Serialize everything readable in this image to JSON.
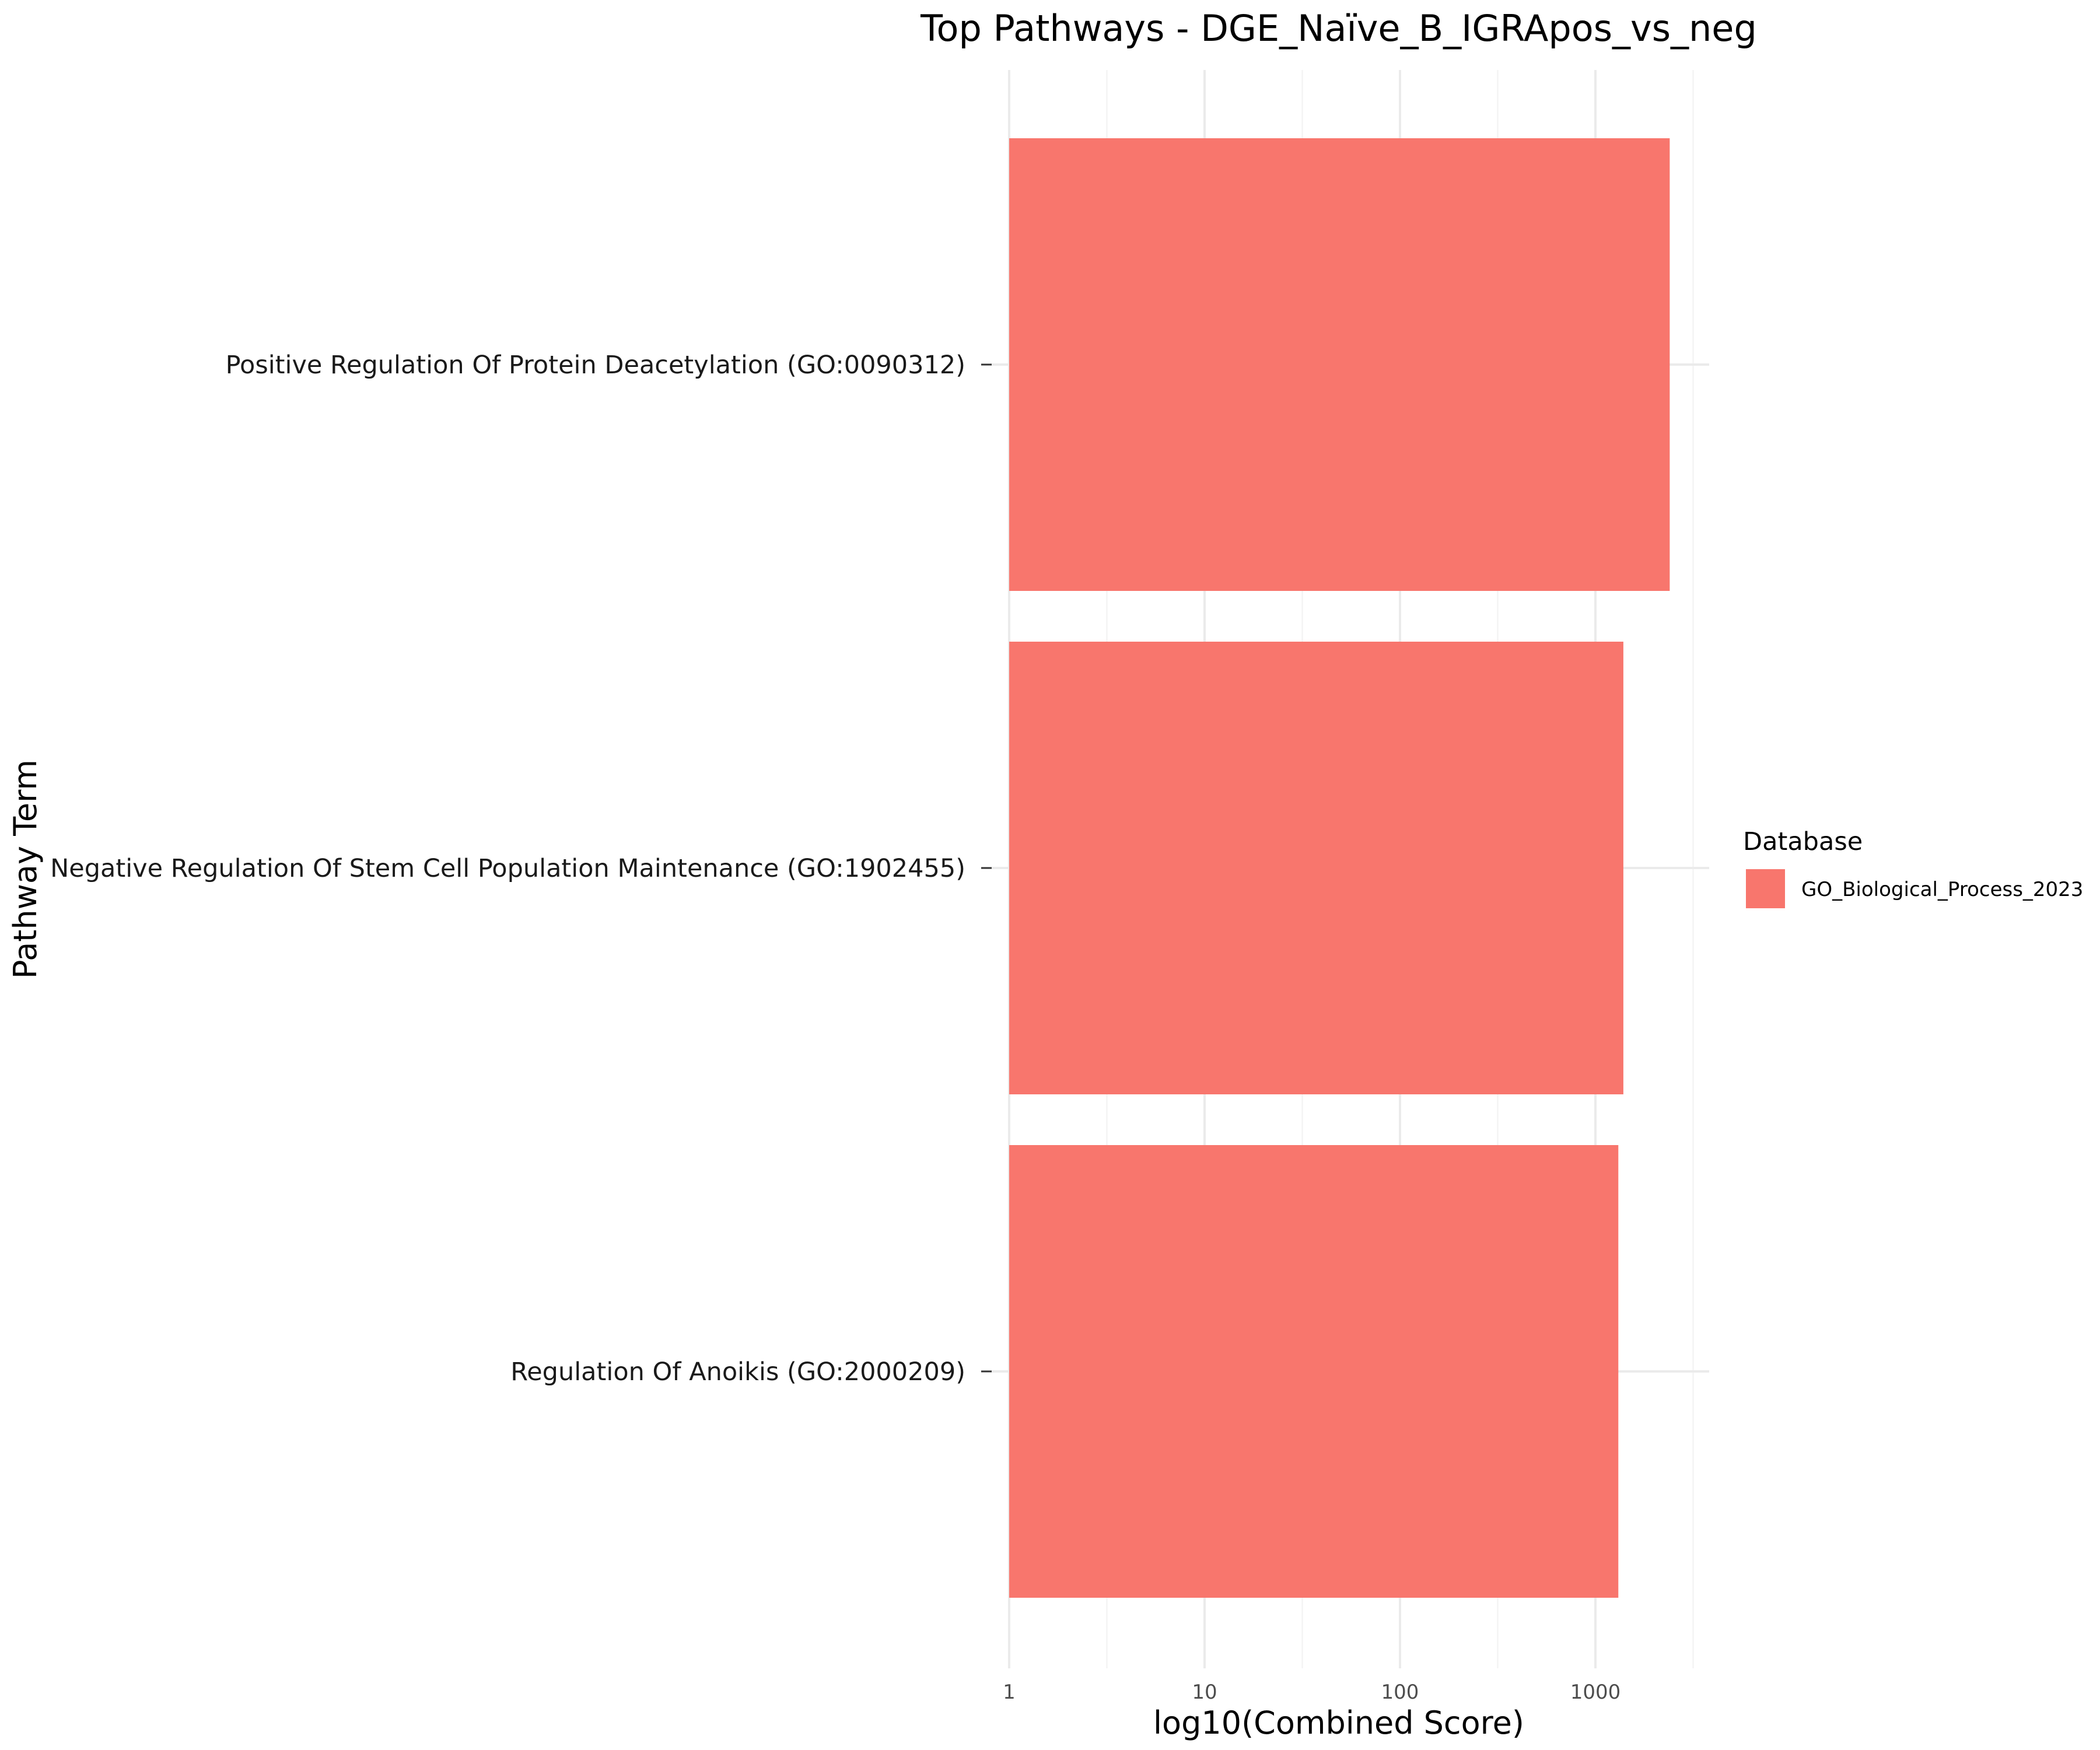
{
  "chart_data": {
    "type": "bar",
    "orientation": "horizontal",
    "title": "Top Pathways - DGE_Naïve_B_IGRApos_vs_neg",
    "xlabel": "log10(Combined Score)",
    "ylabel": "Pathway Term",
    "x_scale": "log10",
    "xlim": [
      1,
      3300
    ],
    "x_ticks": [
      {
        "value": 1,
        "label": "1"
      },
      {
        "value": 10,
        "label": "10"
      },
      {
        "value": 100,
        "label": "100"
      },
      {
        "value": 1000,
        "label": "1000"
      }
    ],
    "categories": [
      "Positive Regulation Of Protein Deacetylation (GO:0090312)",
      "Negative Regulation Of Stem Cell Population Maintenance (GO:1902455)",
      "Regulation Of Anoikis (GO:2000209)"
    ],
    "values": [
      2400,
      1390,
      1310
    ],
    "series": [
      {
        "name": "GO_Biological_Process_2023",
        "color": "#F8766D"
      }
    ],
    "legend": {
      "title": "Database",
      "position": "right"
    },
    "grid": true
  }
}
